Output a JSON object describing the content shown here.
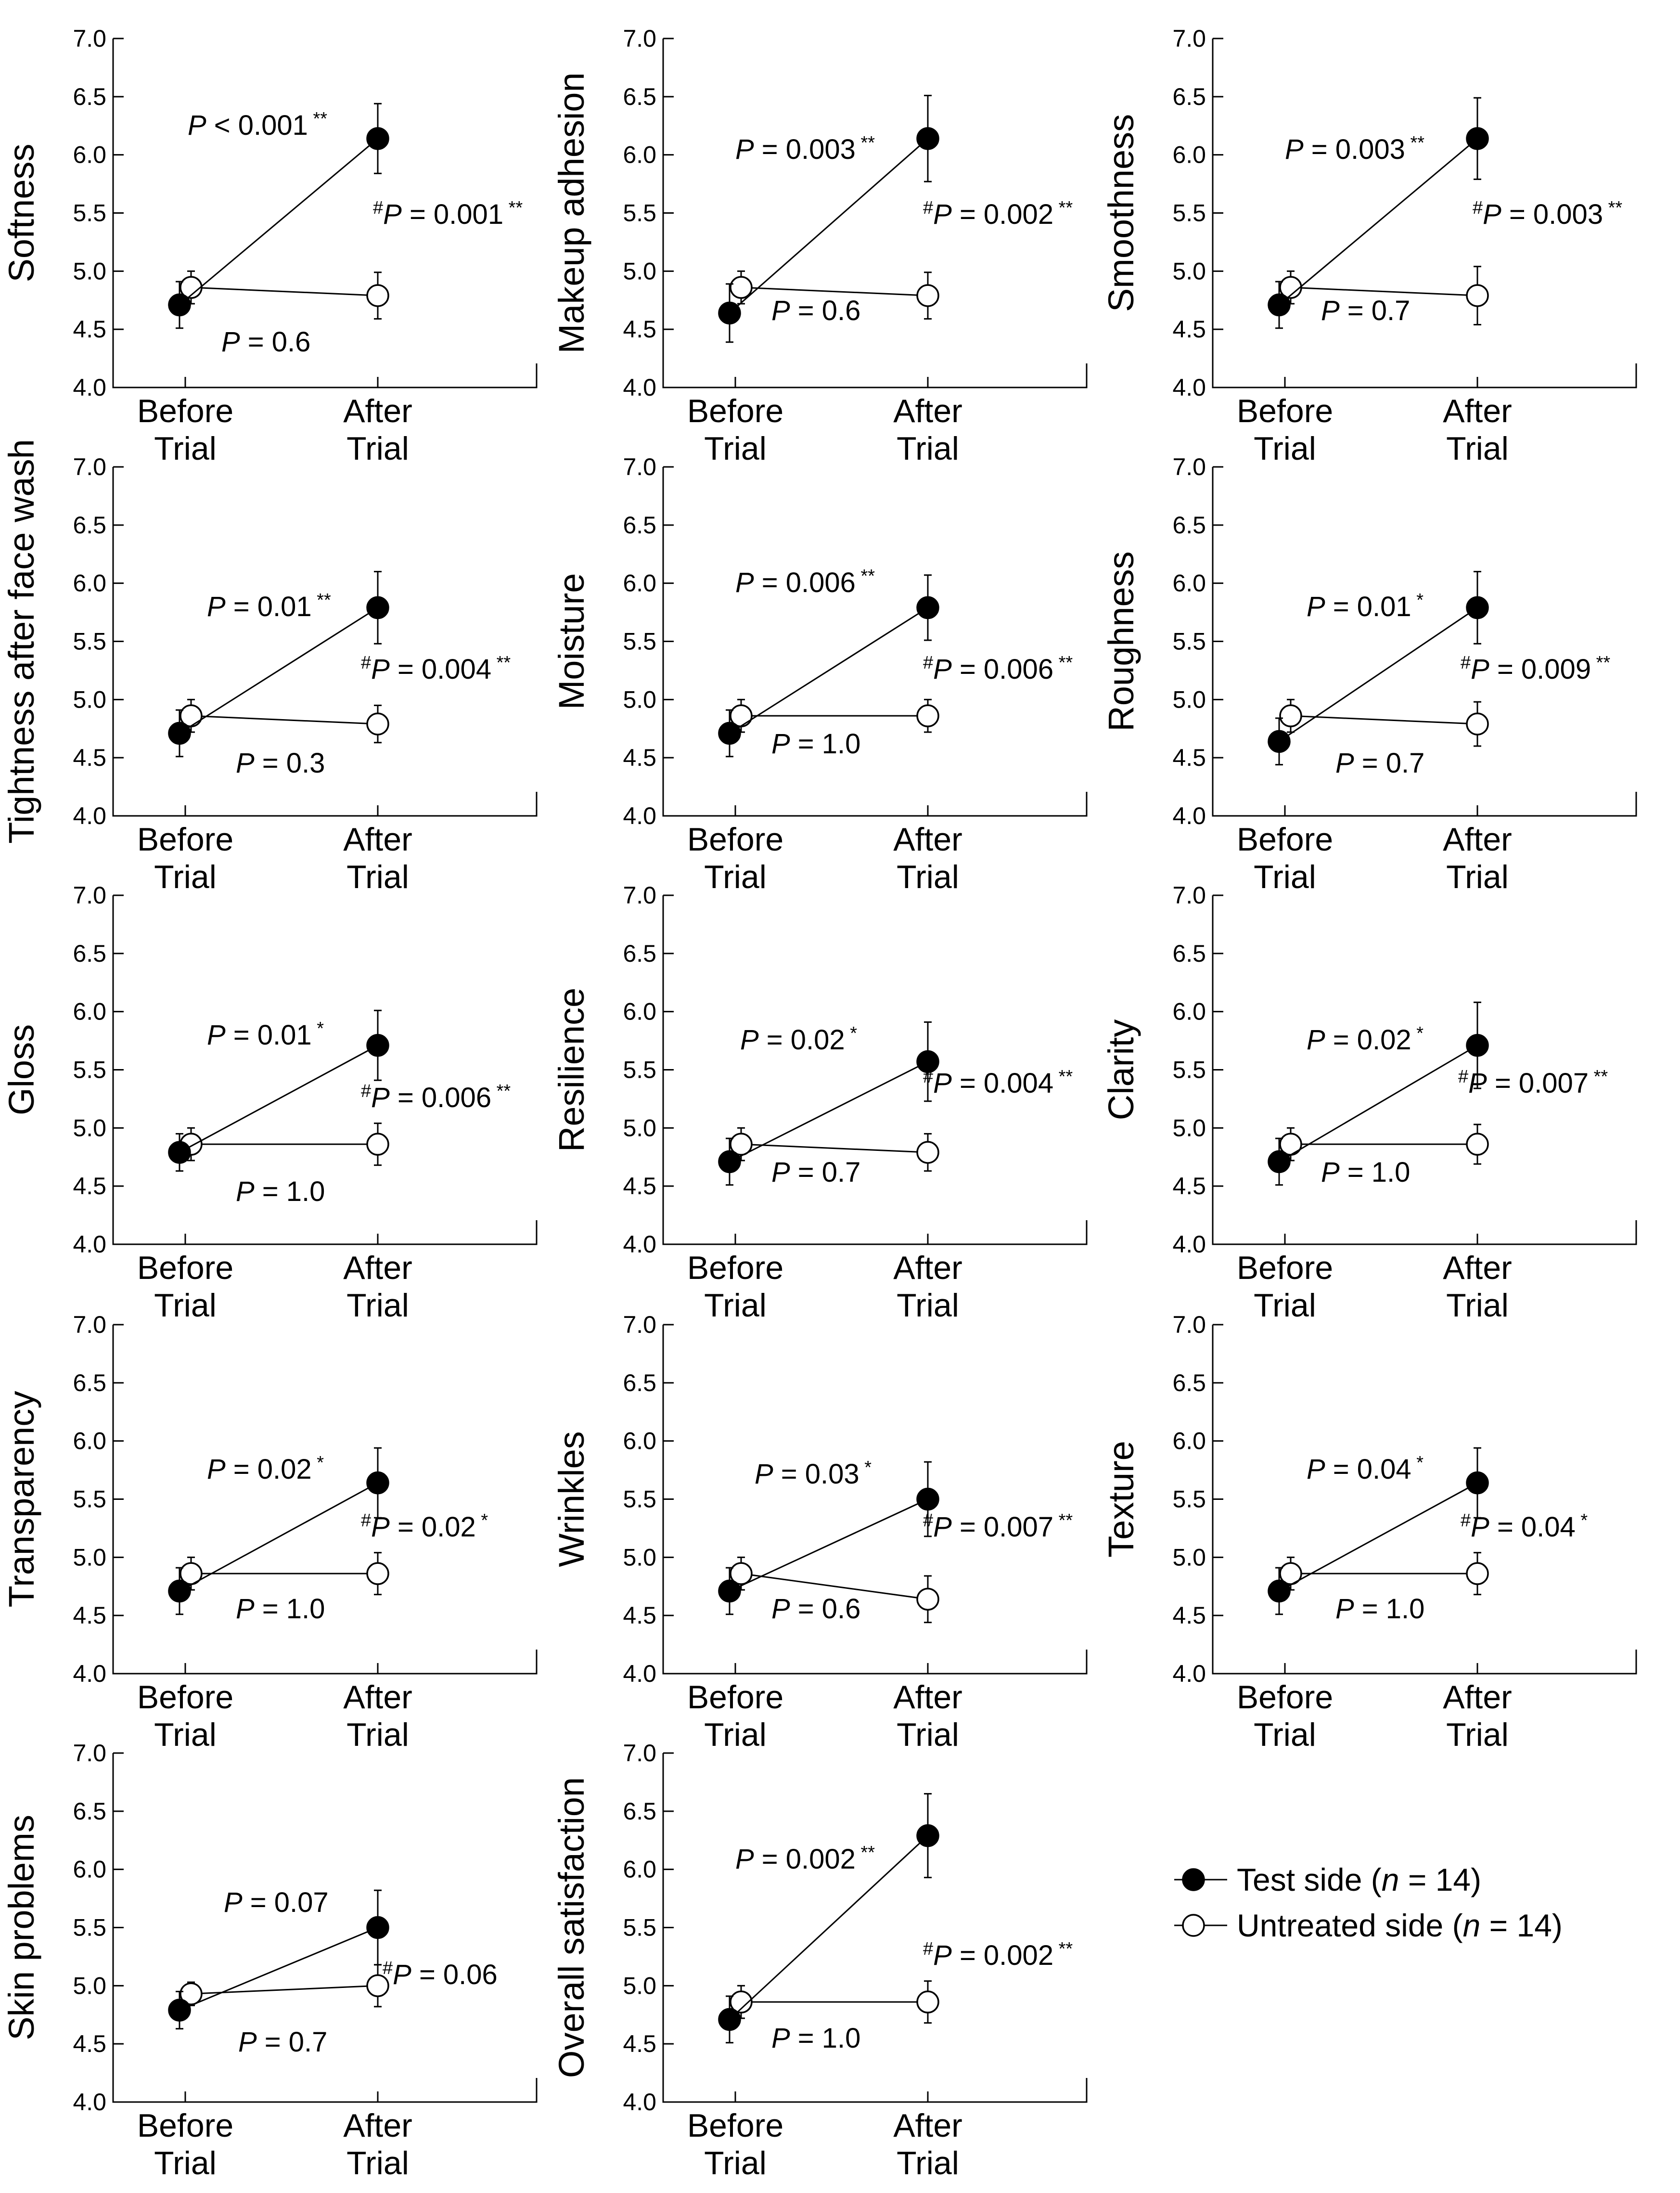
{
  "chart_data": {
    "type": "line",
    "categories": [
      "Before Trial",
      "After Trial"
    ],
    "category_lines": [
      [
        "Before",
        "Trial"
      ],
      [
        "After",
        "Trial"
      ]
    ],
    "yticks": [
      "4.0",
      "4.5",
      "5.0",
      "5.5",
      "6.0",
      "6.5",
      "7.0"
    ],
    "ylim": [
      4.0,
      7.0
    ],
    "legend": {
      "placement": "bottom-right",
      "test": {
        "prefix": "Test side (",
        "n": "n",
        "suffix": " = 14)"
      },
      "untreated": {
        "prefix": "Untreated side (",
        "n": "n",
        "suffix": " = 14)"
      }
    },
    "panels": [
      {
        "ylabel": "Softness",
        "test": {
          "values": [
            4.71,
            6.14
          ],
          "err": [
            0.2,
            0.3
          ]
        },
        "untreated": {
          "values": [
            4.86,
            4.79
          ],
          "err": [
            0.14,
            0.2
          ]
        },
        "p_test": {
          "text": " < 0.001",
          "stars": "**"
        },
        "p_between": {
          "text": " = 0.001",
          "stars": "**"
        },
        "p_untreated": {
          "text": " = 0.6"
        }
      },
      {
        "ylabel": "Makeup adhesion",
        "test": {
          "values": [
            4.64,
            6.14
          ],
          "err": [
            0.25,
            0.37
          ]
        },
        "untreated": {
          "values": [
            4.86,
            4.79
          ],
          "err": [
            0.14,
            0.2
          ]
        },
        "p_test": {
          "text": " = 0.003",
          "stars": "**"
        },
        "p_between": {
          "text": " = 0.002",
          "stars": "**"
        },
        "p_untreated": {
          "text": " = 0.6"
        }
      },
      {
        "ylabel": "Smoothness",
        "test": {
          "values": [
            4.71,
            6.14
          ],
          "err": [
            0.2,
            0.35
          ]
        },
        "untreated": {
          "values": [
            4.86,
            4.79
          ],
          "err": [
            0.14,
            0.25
          ]
        },
        "p_test": {
          "text": " = 0.003",
          "stars": "**"
        },
        "p_between": {
          "text": " = 0.003",
          "stars": "**"
        },
        "p_untreated": {
          "text": " = 0.7"
        }
      },
      {
        "ylabel": "Tightness after face wash",
        "test": {
          "values": [
            4.71,
            5.79
          ],
          "err": [
            0.2,
            0.31
          ]
        },
        "untreated": {
          "values": [
            4.86,
            4.79
          ],
          "err": [
            0.14,
            0.16
          ]
        },
        "p_test": {
          "text": " = 0.01",
          "stars": "**"
        },
        "p_between": {
          "text": " = 0.004",
          "stars": "**"
        },
        "p_untreated": {
          "text": " = 0.3"
        }
      },
      {
        "ylabel": "Moisture",
        "test": {
          "values": [
            4.71,
            5.79
          ],
          "err": [
            0.2,
            0.28
          ]
        },
        "untreated": {
          "values": [
            4.86,
            4.86
          ],
          "err": [
            0.14,
            0.14
          ]
        },
        "p_test": {
          "text": " = 0.006",
          "stars": "**"
        },
        "p_between": {
          "text": " = 0.006",
          "stars": "**"
        },
        "p_untreated": {
          "text": " = 1.0"
        }
      },
      {
        "ylabel": "Roughness",
        "test": {
          "values": [
            4.64,
            5.79
          ],
          "err": [
            0.2,
            0.31
          ]
        },
        "untreated": {
          "values": [
            4.86,
            4.79
          ],
          "err": [
            0.14,
            0.19
          ]
        },
        "p_test": {
          "text": " = 0.01",
          "stars": "*"
        },
        "p_between": {
          "text": " = 0.009",
          "stars": "**"
        },
        "p_untreated": {
          "text": " = 0.7"
        }
      },
      {
        "ylabel": "Gloss",
        "test": {
          "values": [
            4.79,
            5.71
          ],
          "err": [
            0.16,
            0.3
          ]
        },
        "untreated": {
          "values": [
            4.86,
            4.86
          ],
          "err": [
            0.14,
            0.18
          ]
        },
        "p_test": {
          "text": " = 0.01",
          "stars": "*"
        },
        "p_between": {
          "text": " = 0.006",
          "stars": "**"
        },
        "p_untreated": {
          "text": " = 1.0"
        }
      },
      {
        "ylabel": "Resilience",
        "test": {
          "values": [
            4.71,
            5.57
          ],
          "err": [
            0.2,
            0.34
          ]
        },
        "untreated": {
          "values": [
            4.86,
            4.79
          ],
          "err": [
            0.14,
            0.16
          ]
        },
        "p_test": {
          "text": " = 0.02",
          "stars": "*"
        },
        "p_between": {
          "text": " = 0.004",
          "stars": "**"
        },
        "p_untreated": {
          "text": " = 0.7"
        }
      },
      {
        "ylabel": "Clarity",
        "test": {
          "values": [
            4.71,
            5.71
          ],
          "err": [
            0.2,
            0.37
          ]
        },
        "untreated": {
          "values": [
            4.86,
            4.86
          ],
          "err": [
            0.14,
            0.17
          ]
        },
        "p_test": {
          "text": " = 0.02",
          "stars": "*"
        },
        "p_between": {
          "text": " = 0.007",
          "stars": "**"
        },
        "p_untreated": {
          "text": " = 1.0"
        }
      },
      {
        "ylabel": "Transparency",
        "test": {
          "values": [
            4.71,
            5.64
          ],
          "err": [
            0.2,
            0.3
          ]
        },
        "untreated": {
          "values": [
            4.86,
            4.86
          ],
          "err": [
            0.14,
            0.18
          ]
        },
        "p_test": {
          "text": " = 0.02",
          "stars": "*"
        },
        "p_between": {
          "text": " = 0.02",
          "stars": "*"
        },
        "p_untreated": {
          "text": " = 1.0"
        }
      },
      {
        "ylabel": "Wrinkles",
        "test": {
          "values": [
            4.71,
            5.5
          ],
          "err": [
            0.2,
            0.32
          ]
        },
        "untreated": {
          "values": [
            4.86,
            4.64
          ],
          "err": [
            0.14,
            0.2
          ]
        },
        "p_test": {
          "text": " = 0.03",
          "stars": "*"
        },
        "p_between": {
          "text": " = 0.007",
          "stars": "**"
        },
        "p_untreated": {
          "text": " = 0.6"
        }
      },
      {
        "ylabel": "Texture",
        "test": {
          "values": [
            4.71,
            5.64
          ],
          "err": [
            0.2,
            0.3
          ]
        },
        "untreated": {
          "values": [
            4.86,
            4.86
          ],
          "err": [
            0.14,
            0.18
          ]
        },
        "p_test": {
          "text": " = 0.04",
          "stars": "*"
        },
        "p_between": {
          "text": " = 0.04",
          "stars": "*"
        },
        "p_untreated": {
          "text": " = 1.0"
        }
      },
      {
        "ylabel": "Skin problems",
        "test": {
          "values": [
            4.79,
            5.5
          ],
          "err": [
            0.16,
            0.32
          ]
        },
        "untreated": {
          "values": [
            4.93,
            5.0
          ],
          "err": [
            0.1,
            0.18
          ]
        },
        "p_test": {
          "text": " = 0.07",
          "stars": ""
        },
        "p_between": {
          "text": " = 0.06",
          "stars": ""
        },
        "p_untreated": {
          "text": " = 0.7"
        }
      },
      {
        "ylabel": "Overall satisfaction",
        "test": {
          "values": [
            4.71,
            6.29
          ],
          "err": [
            0.2,
            0.36
          ]
        },
        "untreated": {
          "values": [
            4.86,
            4.86
          ],
          "err": [
            0.14,
            0.18
          ]
        },
        "p_test": {
          "text": " = 0.002",
          "stars": "**"
        },
        "p_between": {
          "text": " = 0.002",
          "stars": "**"
        },
        "p_untreated": {
          "text": " = 1.0"
        }
      }
    ]
  }
}
